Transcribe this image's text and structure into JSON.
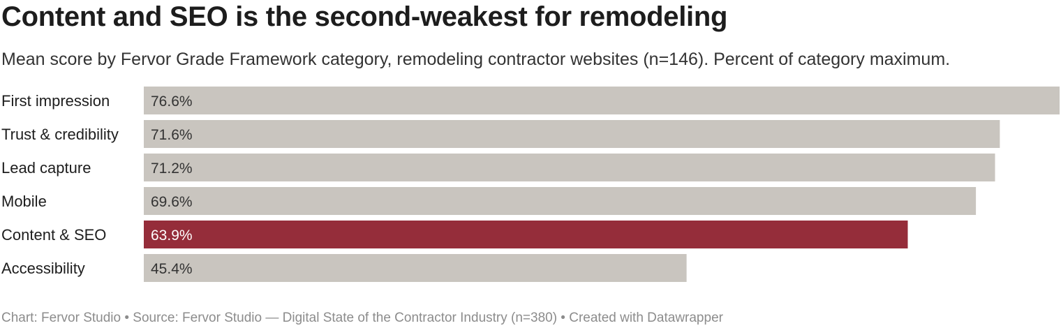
{
  "chart_data": {
    "type": "bar",
    "orientation": "horizontal",
    "title": "Content and SEO is the second-weakest for remodeling",
    "subtitle": "Mean score by Fervor Grade Framework category, remodeling contractor websites (n=146). Percent of category maximum.",
    "categories": [
      "First impression",
      "Trust & credibility",
      "Lead capture",
      "Mobile",
      "Content & SEO",
      "Accessibility"
    ],
    "values": [
      76.6,
      71.6,
      71.2,
      69.6,
      63.9,
      45.4
    ],
    "value_labels": [
      "76.6%",
      "71.6%",
      "71.2%",
      "69.6%",
      "63.9%",
      "45.4%"
    ],
    "highlight_category": "Content & SEO",
    "xlim": [
      0,
      76.6
    ],
    "grid": false,
    "legend": "none",
    "colors": {
      "bar": "#c9c5bf",
      "highlight": "#952d3a",
      "label_dark": "#333333",
      "label_light": "#ffffff"
    }
  },
  "footer": {
    "text": "Chart: Fervor Studio • Source: Fervor Studio — Digital State of the Contractor Industry (n=380) • Created with Datawrapper"
  }
}
